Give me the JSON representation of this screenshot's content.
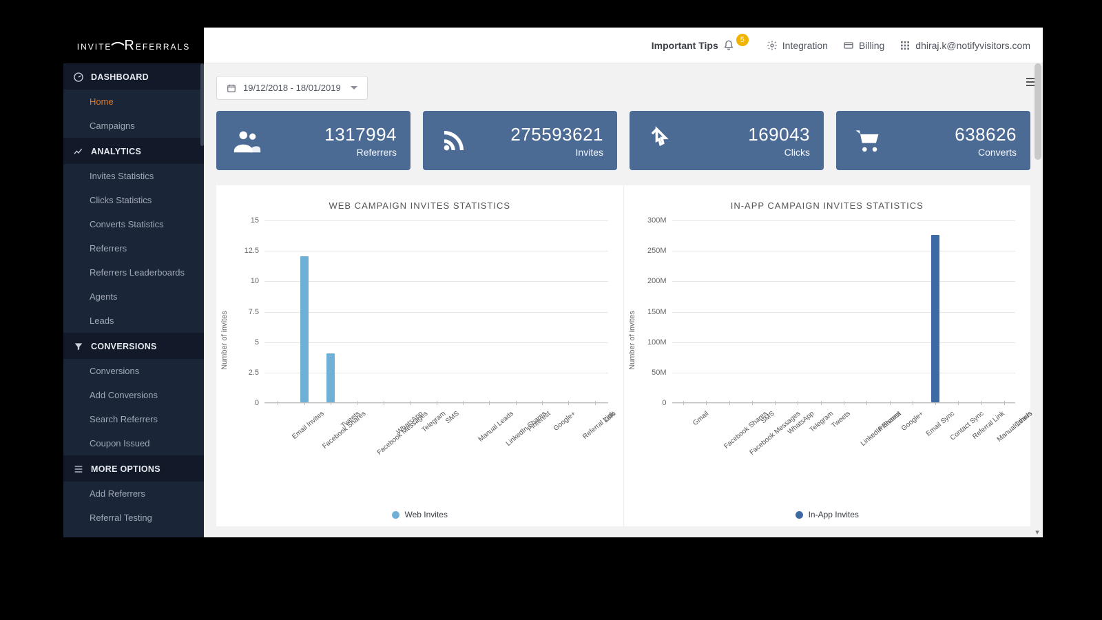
{
  "brand": {
    "left": "INVITE",
    "right": "EFERRALS",
    "big_r": "R"
  },
  "header": {
    "tips_label": "Important Tips",
    "tips_badge": "5",
    "integration_label": "Integration",
    "billing_label": "Billing",
    "user_email": "dhiraj.k@notifyvisitors.com"
  },
  "date_range": "19/12/2018 - 18/01/2019",
  "sidebar": {
    "dashboard": {
      "heading": "DASHBOARD",
      "items": [
        "Home",
        "Campaigns"
      ],
      "active_index": 0
    },
    "analytics": {
      "heading": "ANALYTICS",
      "items": [
        "Invites Statistics",
        "Clicks Statistics",
        "Converts Statistics",
        "Referrers",
        "Referrers Leaderboards",
        "Agents",
        "Leads"
      ]
    },
    "conversions": {
      "heading": "CONVERSIONS",
      "items": [
        "Conversions",
        "Add Conversions",
        "Search Referrers",
        "Coupon Issued"
      ]
    },
    "more": {
      "heading": "MORE OPTIONS",
      "items": [
        "Add Referrers",
        "Referral Testing"
      ]
    }
  },
  "cards": {
    "referrers": {
      "value": "1317994",
      "label": "Referrers"
    },
    "invites": {
      "value": "275593621",
      "label": "Invites"
    },
    "clicks": {
      "value": "169043",
      "label": "Clicks"
    },
    "converts": {
      "value": "638626",
      "label": "Converts"
    },
    "bg_color": "#4b6a94"
  },
  "charts": {
    "web": {
      "type": "bar",
      "title": "WEB CAMPAIGN INVITES STATISTICS",
      "y_axis_label": "Number of invites",
      "y_ticks": [
        "0",
        "2.5",
        "5",
        "7.5",
        "10",
        "12.5",
        "15"
      ],
      "ylim": [
        0,
        15
      ],
      "categories": [
        "Email Invites",
        "Facebook Shares",
        "Tweets",
        "Facebook Messages",
        "WhatsApp",
        "Telegram",
        "SMS",
        "Manual Leads",
        "LinkedIn Shares",
        "Pinterest",
        "Google+",
        "Referral Link",
        "Zalo"
      ],
      "values": [
        0,
        12,
        4,
        0,
        0,
        0,
        0,
        0,
        0,
        0,
        0,
        0,
        0
      ],
      "bar_color": "#6fb1d6",
      "grid_color": "#e6e6e6",
      "axis_color": "#bfbfbf",
      "label_fontsize": 10,
      "legend_label": "Web Invites",
      "legend_color": "#6fb1d6"
    },
    "inapp": {
      "type": "bar",
      "title": "IN-APP CAMPAIGN INVITES STATISTICS",
      "y_axis_label": "Number of invites",
      "y_ticks": [
        "0",
        "50M",
        "100M",
        "150M",
        "200M",
        "250M",
        "300M"
      ],
      "ylim": [
        0,
        300000000
      ],
      "categories": [
        "Gmail",
        "Facebook Shares",
        "Facebook Messages",
        "SMS",
        "WhatsApp",
        "Telegram",
        "Tweets",
        "LinkedIn Shares",
        "Pinterest",
        "Google+",
        "Email Sync",
        "Contact Sync",
        "Referral Link",
        "Manual Leads",
        "Others"
      ],
      "values": [
        0,
        0,
        0,
        0,
        0,
        0,
        0,
        0,
        0,
        0,
        0,
        275000000,
        0,
        0,
        0
      ],
      "bar_color": "#3d6aa3",
      "grid_color": "#e6e6e6",
      "axis_color": "#bfbfbf",
      "label_fontsize": 10,
      "legend_label": "In-App Invites",
      "legend_color": "#3d6aa3"
    }
  }
}
